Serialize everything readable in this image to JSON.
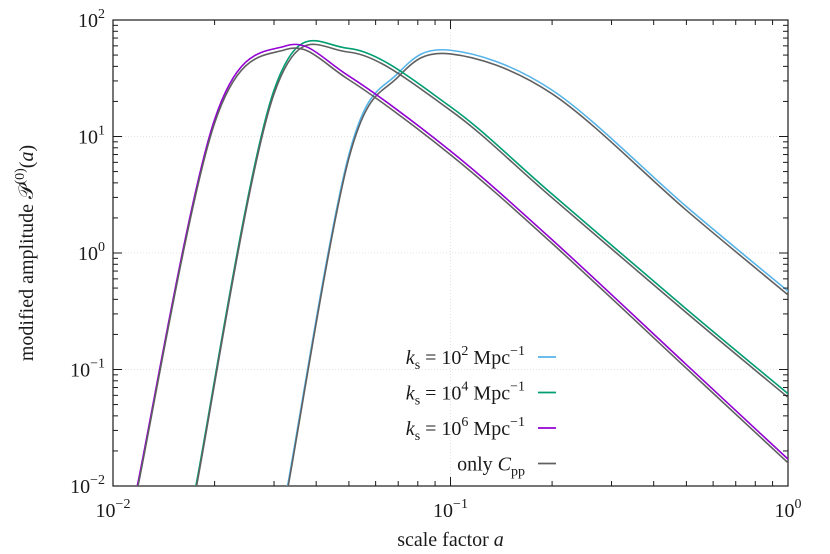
{
  "chart_data": {
    "type": "line",
    "xscale": "log",
    "yscale": "log",
    "xlim": [
      0.01,
      1
    ],
    "ylim": [
      0.01,
      100
    ],
    "grid": true,
    "legend_position": "bottom-right",
    "xlabel": "scale factor a",
    "ylabel": "modified amplitude 𝒫(0)(a)",
    "x_ticks": [
      {
        "value": 0.01,
        "base": "10",
        "exp": "−2"
      },
      {
        "value": 0.1,
        "base": "10",
        "exp": "−1"
      },
      {
        "value": 1,
        "base": "10",
        "exp": "0"
      }
    ],
    "y_ticks": [
      {
        "value": 0.01,
        "base": "10",
        "exp": "−2"
      },
      {
        "value": 0.1,
        "base": "10",
        "exp": "−1"
      },
      {
        "value": 1,
        "base": "10",
        "exp": "0"
      },
      {
        "value": 10,
        "base": "10",
        "exp": "1"
      },
      {
        "value": 100,
        "base": "10",
        "exp": "2"
      }
    ],
    "series": [
      {
        "name": "k_s = 10^2 Mpc^-1",
        "color": "#56b4e9",
        "peak_a": 0.1,
        "peak_value": 55,
        "x": [
          0.0329,
          0.05,
          0.07,
          0.1,
          0.2,
          0.5,
          1.0
        ],
        "values": [
          0.01,
          7,
          35,
          55,
          25,
          2.5,
          0.47
        ]
      },
      {
        "name": "k_s = 10^4 Mpc^-1",
        "color": "#009e73",
        "peak_a": 0.05,
        "peak_value": 57,
        "x": [
          0.0176,
          0.03,
          0.05,
          0.1,
          0.2,
          0.5,
          1.0
        ],
        "values": [
          0.01,
          25,
          57,
          18,
          3.2,
          0.33,
          0.062
        ]
      },
      {
        "name": "k_s = 10^6 Mpc^-1",
        "color": "#9400d3",
        "peak_a": 0.0325,
        "peak_value": 60,
        "x": [
          0.0118,
          0.02,
          0.0325,
          0.05,
          0.1,
          0.2,
          0.5,
          1.0
        ],
        "values": [
          0.01,
          14,
          60,
          33,
          7.5,
          1.3,
          0.11,
          0.017
        ]
      },
      {
        "name": "only C_pp",
        "color": "#606060"
      }
    ],
    "legend": [
      {
        "k": "k",
        "sub": "s",
        "eq": " = 10",
        "sup": "2",
        "unit": " Mpc",
        "unit_sup": "−1",
        "color": "#56b4e9"
      },
      {
        "k": "k",
        "sub": "s",
        "eq": " = 10",
        "sup": "4",
        "unit": " Mpc",
        "unit_sup": "−1",
        "color": "#009e73"
      },
      {
        "k": "k",
        "sub": "s",
        "eq": " = 10",
        "sup": "6",
        "unit": " Mpc",
        "unit_sup": "−1",
        "color": "#9400d3"
      },
      {
        "pre": "only ",
        "C": "C",
        "sub": "pp",
        "color": "#606060"
      }
    ],
    "overlay": {
      "color": "#606060",
      "scale": 0.93
    }
  }
}
